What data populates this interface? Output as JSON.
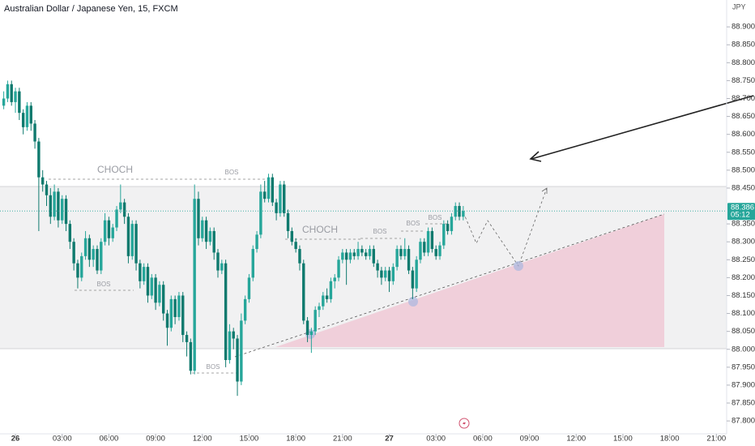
{
  "chart_data": {
    "type": "candlestick",
    "title": "Australian Dollar / Japanese Yen, 15, FXCM",
    "currency": "JPY",
    "countdown": "05:12",
    "annotations": [
      "CHOCH",
      "BOS",
      "BOS",
      "BOS",
      "CHOCH",
      "BOS",
      "BOS",
      "BOS"
    ],
    "up_color": "#26a69a",
    "down_color": "#0f7a6e",
    "xlim": [
      -0.99,
      45.66
    ],
    "xticks": [
      {
        "value": 0,
        "label": "26"
      },
      {
        "value": 3,
        "label": "03:00"
      },
      {
        "value": 6,
        "label": "06:00"
      },
      {
        "value": 9,
        "label": "09:00"
      },
      {
        "value": 12,
        "label": "12:00"
      },
      {
        "value": 15,
        "label": "15:00"
      },
      {
        "value": 18,
        "label": "18:00"
      },
      {
        "value": 21,
        "label": "21:00"
      },
      {
        "value": 24,
        "label": "27"
      },
      {
        "value": 27,
        "label": "03:00"
      },
      {
        "value": 30,
        "label": "06:00"
      },
      {
        "value": 33,
        "label": "09:00"
      },
      {
        "value": 36,
        "label": "12:00"
      },
      {
        "value": 39,
        "label": "15:00"
      },
      {
        "value": 42,
        "label": "18:00"
      },
      {
        "value": 45,
        "label": "21:00"
      }
    ],
    "ylim": [
      87.764,
      88.975
    ],
    "yticks": [
      {
        "value": 87.8,
        "label": "87.800"
      },
      {
        "value": 87.85,
        "label": "87.850"
      },
      {
        "value": 87.9,
        "label": "87.900"
      },
      {
        "value": 87.95,
        "label": "87.950"
      },
      {
        "value": 88.0,
        "label": "88.000"
      },
      {
        "value": 88.05,
        "label": "88.050"
      },
      {
        "value": 88.1,
        "label": "88.100"
      },
      {
        "value": 88.15,
        "label": "88.150"
      },
      {
        "value": 88.2,
        "label": "88.200"
      },
      {
        "value": 88.25,
        "label": "88.250"
      },
      {
        "value": 88.3,
        "label": "88.300"
      },
      {
        "value": 88.35,
        "label": "88.350"
      },
      {
        "value": 88.45,
        "label": "88.450"
      },
      {
        "value": 88.5,
        "label": "88.500"
      },
      {
        "value": 88.55,
        "label": "88.550"
      },
      {
        "value": 88.6,
        "label": "88.600"
      },
      {
        "value": 88.65,
        "label": "88.650"
      },
      {
        "value": 88.7,
        "label": "88.700"
      },
      {
        "value": 88.75,
        "label": "88.750"
      },
      {
        "value": 88.8,
        "label": "88.800"
      },
      {
        "value": 88.85,
        "label": "88.850"
      },
      {
        "value": 88.9,
        "label": "88.900"
      }
    ],
    "x": [
      -0.75,
      -0.5,
      -0.25,
      0,
      0.25,
      0.5,
      0.75,
      1,
      1.25,
      1.5,
      1.75,
      2,
      2.25,
      2.5,
      2.75,
      3,
      3.25,
      3.5,
      3.75,
      4,
      4.25,
      4.5,
      4.75,
      5,
      5.25,
      5.5,
      5.75,
      6,
      6.25,
      6.5,
      6.75,
      7,
      7.25,
      7.5,
      7.75,
      8,
      8.25,
      8.5,
      8.75,
      9,
      9.25,
      9.5,
      9.75,
      10,
      10.25,
      10.5,
      10.75,
      11,
      11.25,
      11.5,
      11.75,
      12,
      12.25,
      12.5,
      12.75,
      13,
      13.25,
      13.5,
      13.75,
      14,
      14.25,
      14.5,
      14.75,
      15,
      15.25,
      15.5,
      15.75,
      16,
      16.25,
      16.5,
      16.75,
      17,
      17.25,
      17.5,
      17.75,
      18,
      18.25,
      18.5,
      18.75,
      19,
      19.25,
      19.5,
      19.75,
      20,
      20.25,
      20.5,
      20.75,
      21,
      21.25,
      21.5,
      21.75,
      22,
      22.25,
      22.5,
      22.75,
      23,
      23.25,
      23.5,
      23.75,
      24,
      24.25,
      24.5,
      24.75,
      25,
      25.25,
      25.5,
      25.75,
      26,
      26.25,
      26.5,
      26.75,
      27,
      27.25,
      27.5,
      27.75,
      28,
      28.25,
      28.5,
      28.75
    ],
    "open": [
      88.68,
      88.7,
      88.74,
      88.69,
      88.72,
      88.66,
      88.62,
      88.68,
      88.63,
      88.58,
      88.48,
      88.46,
      88.43,
      88.37,
      88.44,
      88.36,
      88.42,
      88.35,
      88.3,
      88.24,
      88.2,
      88.26,
      88.31,
      88.25,
      88.28,
      88.22,
      88.3,
      88.36,
      88.31,
      88.34,
      88.39,
      88.41,
      88.37,
      88.26,
      88.35,
      88.24,
      88.19,
      88.23,
      88.15,
      88.2,
      88.13,
      88.18,
      88.1,
      88.06,
      88.14,
      88.09,
      88.15,
      88.04,
      88.02,
      87.94,
      88.42,
      88.31,
      88.36,
      88.3,
      88.33,
      88.27,
      88.22,
      88.24,
      87.97,
      88.05,
      88.03,
      87.91,
      88.08,
      88.14,
      88.2,
      88.28,
      88.32,
      88.44,
      88.42,
      88.48,
      88.41,
      88.38,
      88.46,
      88.38,
      88.33,
      88.3,
      88.28,
      88.24,
      88.08,
      88.04,
      88.05,
      88.11,
      88.12,
      88.15,
      88.14,
      88.19,
      88.2,
      88.25,
      88.27,
      88.25,
      88.27,
      88.26,
      88.28,
      88.27,
      88.26,
      88.28,
      88.24,
      88.22,
      88.2,
      88.22,
      88.19,
      88.23,
      88.28,
      88.26,
      88.28,
      88.22,
      88.17,
      88.25,
      88.3,
      88.27,
      88.33,
      88.28,
      88.26,
      88.29,
      88.35,
      88.33,
      88.37,
      88.4,
      88.37
    ],
    "high": [
      88.72,
      88.75,
      88.75,
      88.73,
      88.73,
      88.67,
      88.69,
      88.69,
      88.64,
      88.59,
      88.5,
      88.47,
      88.45,
      88.46,
      88.45,
      88.43,
      88.43,
      88.36,
      88.31,
      88.25,
      88.27,
      88.33,
      88.32,
      88.29,
      88.29,
      88.31,
      88.38,
      88.37,
      88.35,
      88.4,
      88.46,
      88.42,
      88.38,
      88.36,
      88.36,
      88.25,
      88.24,
      88.24,
      88.21,
      88.21,
      88.19,
      88.19,
      88.11,
      88.15,
      88.15,
      88.16,
      88.16,
      88.05,
      88.03,
      88.46,
      88.44,
      88.37,
      88.37,
      88.34,
      88.34,
      88.28,
      88.25,
      88.25,
      88.07,
      88.06,
      88.04,
      88.1,
      88.15,
      88.21,
      88.29,
      88.33,
      88.46,
      88.47,
      88.49,
      88.49,
      88.42,
      88.47,
      88.47,
      88.39,
      88.34,
      88.31,
      88.29,
      88.25,
      88.09,
      88.06,
      88.12,
      88.13,
      88.16,
      88.17,
      88.2,
      88.21,
      88.26,
      88.28,
      88.28,
      88.28,
      88.28,
      88.3,
      88.29,
      88.28,
      88.29,
      88.29,
      88.25,
      88.23,
      88.23,
      88.23,
      88.24,
      88.29,
      88.29,
      88.31,
      88.29,
      88.23,
      88.26,
      88.31,
      88.31,
      88.34,
      88.34,
      88.29,
      88.3,
      88.36,
      88.36,
      88.38,
      88.41,
      88.41,
      88.4
    ],
    "low": [
      88.67,
      88.69,
      88.68,
      88.66,
      88.64,
      88.6,
      88.61,
      88.61,
      88.56,
      88.33,
      88.44,
      88.4,
      88.35,
      88.36,
      88.34,
      88.35,
      88.33,
      88.28,
      88.22,
      88.17,
      88.19,
      88.25,
      88.23,
      88.23,
      88.21,
      88.21,
      88.29,
      88.29,
      88.3,
      88.33,
      88.38,
      88.35,
      88.24,
      88.25,
      88.22,
      88.17,
      88.18,
      88.13,
      88.14,
      88.11,
      88.12,
      88.08,
      88.01,
      88.05,
      88.07,
      88.08,
      88.02,
      87.98,
      87.93,
      87.93,
      88.29,
      88.3,
      88.28,
      88.29,
      88.25,
      88.2,
      88.21,
      87.95,
      87.96,
      88.0,
      87.87,
      87.9,
      88.07,
      88.13,
      88.19,
      88.27,
      88.31,
      88.41,
      88.41,
      88.4,
      88.36,
      88.37,
      88.37,
      88.31,
      88.29,
      88.27,
      88.22,
      88.07,
      88.02,
      87.99,
      88.04,
      88.09,
      88.11,
      88.13,
      88.13,
      88.17,
      88.19,
      88.24,
      88.18,
      88.24,
      88.25,
      88.25,
      88.26,
      88.25,
      88.25,
      88.23,
      88.2,
      88.18,
      88.19,
      88.16,
      88.18,
      88.22,
      88.25,
      88.25,
      88.21,
      88.14,
      88.16,
      88.24,
      88.26,
      88.26,
      88.27,
      88.25,
      88.25,
      88.28,
      88.32,
      88.32,
      88.36,
      88.36,
      88.36
    ],
    "close": [
      88.7,
      88.74,
      88.69,
      88.72,
      88.66,
      88.62,
      88.68,
      88.63,
      88.58,
      88.48,
      88.46,
      88.43,
      88.37,
      88.44,
      88.36,
      88.42,
      88.35,
      88.3,
      88.24,
      88.2,
      88.26,
      88.31,
      88.25,
      88.28,
      88.22,
      88.3,
      88.36,
      88.31,
      88.34,
      88.39,
      88.41,
      88.37,
      88.26,
      88.35,
      88.24,
      88.19,
      88.23,
      88.15,
      88.2,
      88.13,
      88.18,
      88.1,
      88.06,
      88.14,
      88.09,
      88.15,
      88.04,
      88.02,
      87.94,
      88.42,
      88.31,
      88.36,
      88.3,
      88.33,
      88.27,
      88.22,
      88.24,
      87.97,
      88.05,
      88.03,
      87.91,
      88.08,
      88.14,
      88.2,
      88.28,
      88.32,
      88.44,
      88.42,
      88.48,
      88.41,
      88.38,
      88.46,
      88.38,
      88.33,
      88.3,
      88.28,
      88.24,
      88.08,
      88.04,
      88.05,
      88.11,
      88.12,
      88.15,
      88.14,
      88.19,
      88.2,
      88.25,
      88.27,
      88.25,
      88.27,
      88.26,
      88.28,
      88.27,
      88.26,
      88.28,
      88.24,
      88.22,
      88.2,
      88.22,
      88.19,
      88.23,
      88.28,
      88.26,
      88.28,
      88.22,
      88.17,
      88.25,
      88.3,
      88.27,
      88.33,
      88.28,
      88.26,
      88.29,
      88.35,
      88.33,
      88.37,
      88.4,
      88.37,
      88.386
    ]
  }
}
